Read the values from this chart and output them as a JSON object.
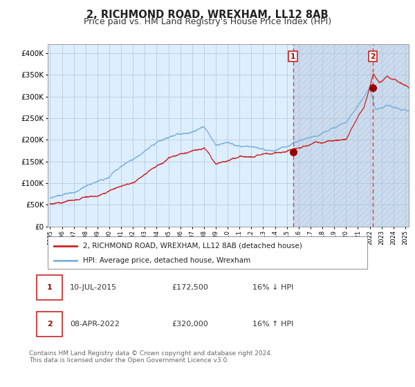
{
  "title": "2, RICHMOND ROAD, WREXHAM, LL12 8AB",
  "subtitle": "Price paid vs. HM Land Registry's House Price Index (HPI)",
  "title_fontsize": 10.5,
  "subtitle_fontsize": 9,
  "bg_color": "#ffffff",
  "plot_bg_color": "#ddeeff",
  "grid_color": "#b0c4d8",
  "hpi_color": "#7ab0d8",
  "price_color": "#cc2222",
  "dashed_color": "#ee3333",
  "marker_color": "#990000",
  "hatch_bg_color": "#ccdcee",
  "legend_label_hpi": "HPI: Average price, detached house, Wrexham",
  "legend_label_price": "2, RICHMOND ROAD, WREXHAM, LL12 8AB (detached house)",
  "sale1_date": 2015.52,
  "sale1_price": 172500,
  "sale1_label": "1",
  "sale2_date": 2022.27,
  "sale2_price": 320000,
  "sale2_label": "2",
  "ylim": [
    0,
    420000
  ],
  "xlim_start": 1994.8,
  "xlim_end": 2025.3,
  "hatch_start": 2015.52,
  "hatch_end": 2025.3,
  "footnote": "Contains HM Land Registry data © Crown copyright and database right 2024.\nThis data is licensed under the Open Government Licence v3.0.",
  "table_data": [
    [
      "1",
      "10-JUL-2015",
      "£172,500",
      "16% ↓ HPI"
    ],
    [
      "2",
      "08-APR-2022",
      "£320,000",
      "16% ↑ HPI"
    ]
  ]
}
